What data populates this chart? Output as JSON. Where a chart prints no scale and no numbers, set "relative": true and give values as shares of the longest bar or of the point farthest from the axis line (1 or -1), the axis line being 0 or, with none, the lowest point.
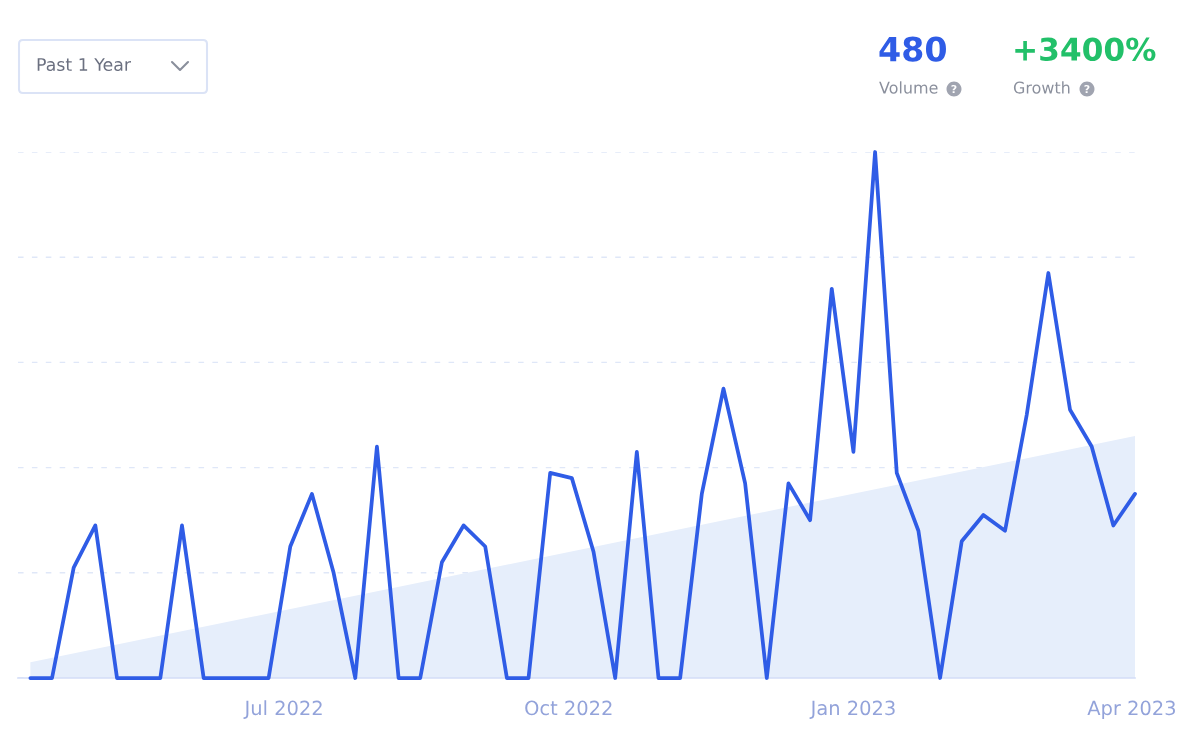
{
  "chart_data": {
    "type": "line",
    "relative": true,
    "annotations": [
      "Past 1 Year",
      "480",
      "Volume",
      "+3400%",
      "Growth"
    ],
    "xlim": [
      "2022-04-06",
      "2023-04-02"
    ],
    "xticks": [
      {
        "value": "2022-07-01",
        "label": "Jul 2022"
      },
      {
        "value": "2022-10-01",
        "label": "Oct 2022"
      },
      {
        "value": "2023-01-01",
        "label": "Jan 2023"
      },
      {
        "value": "2023-04-01",
        "label": "Apr 2023"
      }
    ],
    "grid": "y",
    "series": [
      {
        "type": "area",
        "color": "#e6eefb",
        "x": [
          "2022-04-10",
          "2023-04-02"
        ],
        "values": [
          0.03,
          0.46
        ]
      },
      {
        "color": "#2f5ce6",
        "x": [
          "2022-04-10",
          "2022-04-17",
          "2022-04-24",
          "2022-05-01",
          "2022-05-08",
          "2022-05-15",
          "2022-05-22",
          "2022-05-29",
          "2022-06-05",
          "2022-06-12",
          "2022-06-19",
          "2022-06-26",
          "2022-07-03",
          "2022-07-10",
          "2022-07-17",
          "2022-07-24",
          "2022-07-31",
          "2022-08-07",
          "2022-08-14",
          "2022-08-21",
          "2022-08-28",
          "2022-09-04",
          "2022-09-11",
          "2022-09-18",
          "2022-09-25",
          "2022-10-02",
          "2022-10-09",
          "2022-10-16",
          "2022-10-23",
          "2022-10-30",
          "2022-11-06",
          "2022-11-13",
          "2022-11-20",
          "2022-11-27",
          "2022-12-04",
          "2022-12-11",
          "2022-12-18",
          "2022-12-25",
          "2023-01-01",
          "2023-01-08",
          "2023-01-15",
          "2023-01-22",
          "2023-01-29",
          "2023-02-05",
          "2023-02-12",
          "2023-02-19",
          "2023-02-26",
          "2023-03-05",
          "2023-03-12",
          "2023-03-19",
          "2023-03-26",
          "2023-04-02"
        ],
        "values": [
          0,
          0,
          0.21,
          0.29,
          0,
          0,
          0,
          0.29,
          0,
          0,
          0,
          0,
          0.25,
          0.35,
          0.2,
          0,
          0.44,
          0,
          0,
          0.22,
          0.29,
          0.25,
          0,
          0,
          0.39,
          0.38,
          0.24,
          0,
          0.43,
          0,
          0,
          0.35,
          0.55,
          0.37,
          0,
          0.37,
          0.3,
          0.74,
          0.43,
          1,
          0.39,
          0.28,
          0,
          0.26,
          0.31,
          0.28,
          0.5,
          0.77,
          0.51,
          0.44,
          0.29,
          0.35
        ]
      }
    ]
  }
}
